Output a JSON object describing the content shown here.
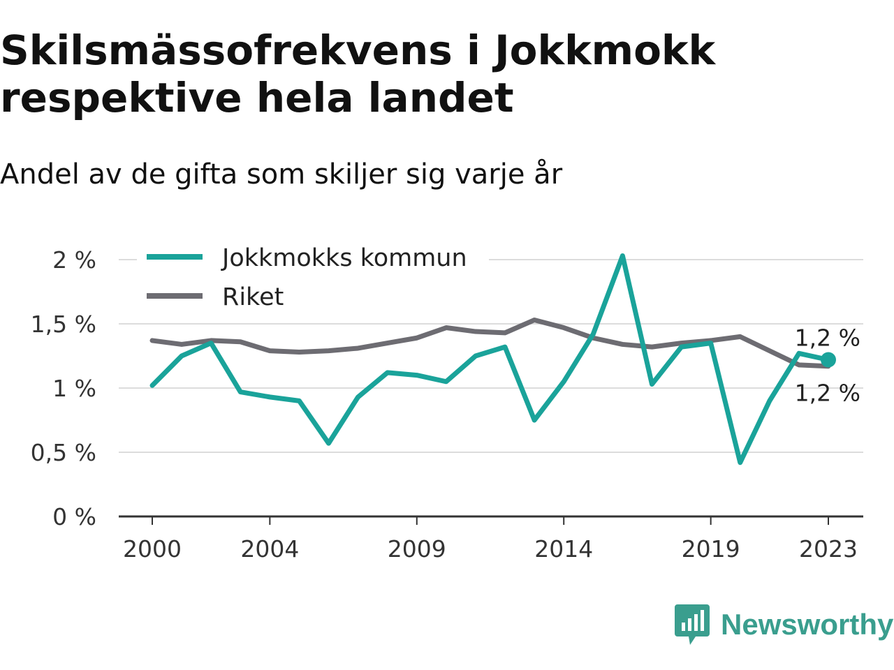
{
  "title": "Skilsmässofrekvens i Jokkmokk respektive hela landet",
  "subtitle": "Andel av de gifta som skiljer sig varje år",
  "brand": {
    "name": "Newsworthy",
    "icon": "newsworthy-logo-icon",
    "color": "#3a9e8e"
  },
  "chart_data": {
    "type": "line",
    "x": [
      2000,
      2001,
      2002,
      2003,
      2004,
      2005,
      2006,
      2007,
      2008,
      2009,
      2010,
      2011,
      2012,
      2013,
      2014,
      2015,
      2016,
      2017,
      2018,
      2019,
      2020,
      2021,
      2022,
      2023
    ],
    "x_ticks": [
      2000,
      2004,
      2009,
      2014,
      2019,
      2023
    ],
    "x_tick_labels": [
      "2000",
      "2004",
      "2009",
      "2014",
      "2019",
      "2023"
    ],
    "y_ticks": [
      0,
      0.5,
      1,
      1.5,
      2
    ],
    "y_tick_labels": [
      "0 %",
      "0,5 %",
      "1 %",
      "1,5 %",
      "2 %"
    ],
    "ylim": [
      0,
      2.1
    ],
    "grid": true,
    "legend_position": "top-left",
    "series": [
      {
        "name": "Jokkmokks kommun",
        "color": "#1aa39a",
        "values": [
          1.02,
          1.25,
          1.35,
          0.97,
          0.93,
          0.9,
          0.57,
          0.93,
          1.12,
          1.1,
          1.05,
          1.25,
          1.32,
          0.75,
          1.05,
          1.42,
          2.03,
          1.03,
          1.32,
          1.35,
          0.42,
          0.9,
          1.27,
          1.22
        ],
        "end_label": "1,2 %",
        "end_marker": true
      },
      {
        "name": "Riket",
        "color": "#6d6c72",
        "values": [
          1.37,
          1.34,
          1.37,
          1.36,
          1.29,
          1.28,
          1.29,
          1.31,
          1.35,
          1.39,
          1.47,
          1.44,
          1.43,
          1.53,
          1.47,
          1.39,
          1.34,
          1.32,
          1.35,
          1.37,
          1.4,
          1.29,
          1.18,
          1.17
        ],
        "end_label": "1,2 %",
        "end_marker": false
      }
    ]
  }
}
